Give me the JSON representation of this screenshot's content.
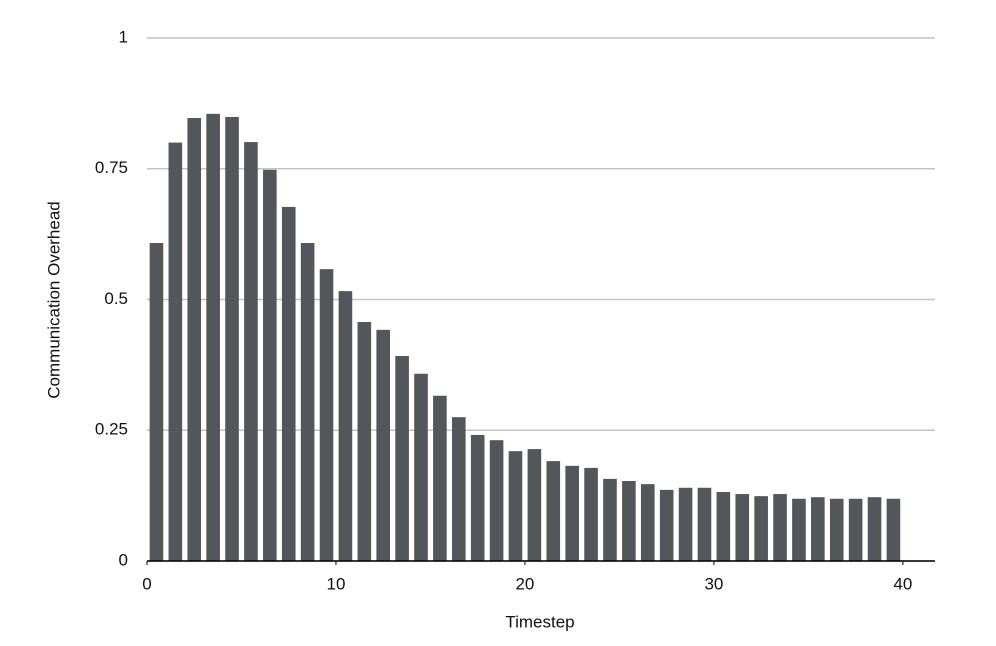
{
  "chart_data": {
    "type": "bar",
    "x_label": "Timestep",
    "y_label": "Communication Overhead",
    "x": [
      0.5,
      1.5,
      2.5,
      3.5,
      4.5,
      5.5,
      6.5,
      7.5,
      8.5,
      9.5,
      10.5,
      11.5,
      12.5,
      13.5,
      14.5,
      15.5,
      16.5,
      17.5,
      18.5,
      19.5,
      20.5,
      21.5,
      22.5,
      23.5,
      24.5,
      25.5,
      26.5,
      27.5,
      28.5,
      29.5,
      30.5,
      31.5,
      32.5,
      33.5,
      34.5,
      35.5,
      36.5,
      37.5,
      38.5,
      39.5
    ],
    "values": [
      0.608,
      0.8,
      0.847,
      0.855,
      0.849,
      0.801,
      0.748,
      0.677,
      0.608,
      0.558,
      0.516,
      0.457,
      0.442,
      0.392,
      0.358,
      0.316,
      0.275,
      0.241,
      0.231,
      0.21,
      0.214,
      0.191,
      0.182,
      0.178,
      0.157,
      0.153,
      0.147,
      0.136,
      0.14,
      0.14,
      0.132,
      0.128,
      0.124,
      0.128,
      0.119,
      0.122,
      0.119,
      0.119,
      0.122,
      0.119
    ],
    "color": "#53565a",
    "xlim": [
      0,
      41.7
    ],
    "xticks": [
      0,
      10,
      20,
      30,
      40
    ],
    "ylim": [
      0,
      1
    ],
    "yticks": [
      0,
      0.25,
      0.5,
      0.75,
      1
    ],
    "grid": true
  }
}
